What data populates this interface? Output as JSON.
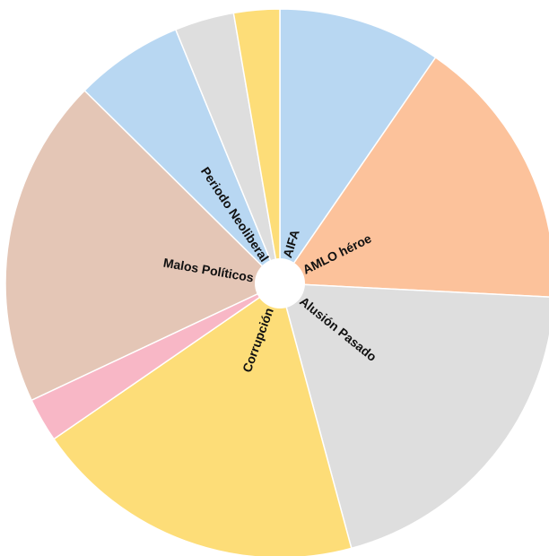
{
  "chart_data": {
    "type": "pie",
    "inner_hole": true,
    "start_angle_deg": 0,
    "direction": "clockwise",
    "slices": [
      {
        "label": "AIFA",
        "value": 9.6,
        "color": "#b8d7f2"
      },
      {
        "label": "AMLO héroe",
        "value": 16.2,
        "color": "#fcc29b"
      },
      {
        "label": "Alusión Pasado",
        "value": 20.0,
        "color": "#dedede"
      },
      {
        "label": "Corrupción",
        "value": 19.6,
        "color": "#fddd78"
      },
      {
        "label": "",
        "value": 2.6,
        "color": "#f8b7c6"
      },
      {
        "label": "Malos Políticos",
        "value": 19.4,
        "color": "#e4c6b6"
      },
      {
        "label": "Periodo Neoliberal",
        "value": 6.4,
        "color": "#b8d7f2"
      },
      {
        "label": "",
        "value": 3.5,
        "color": "#dedede"
      },
      {
        "label": "",
        "value": 2.7,
        "color": "#fddd78"
      }
    ]
  }
}
